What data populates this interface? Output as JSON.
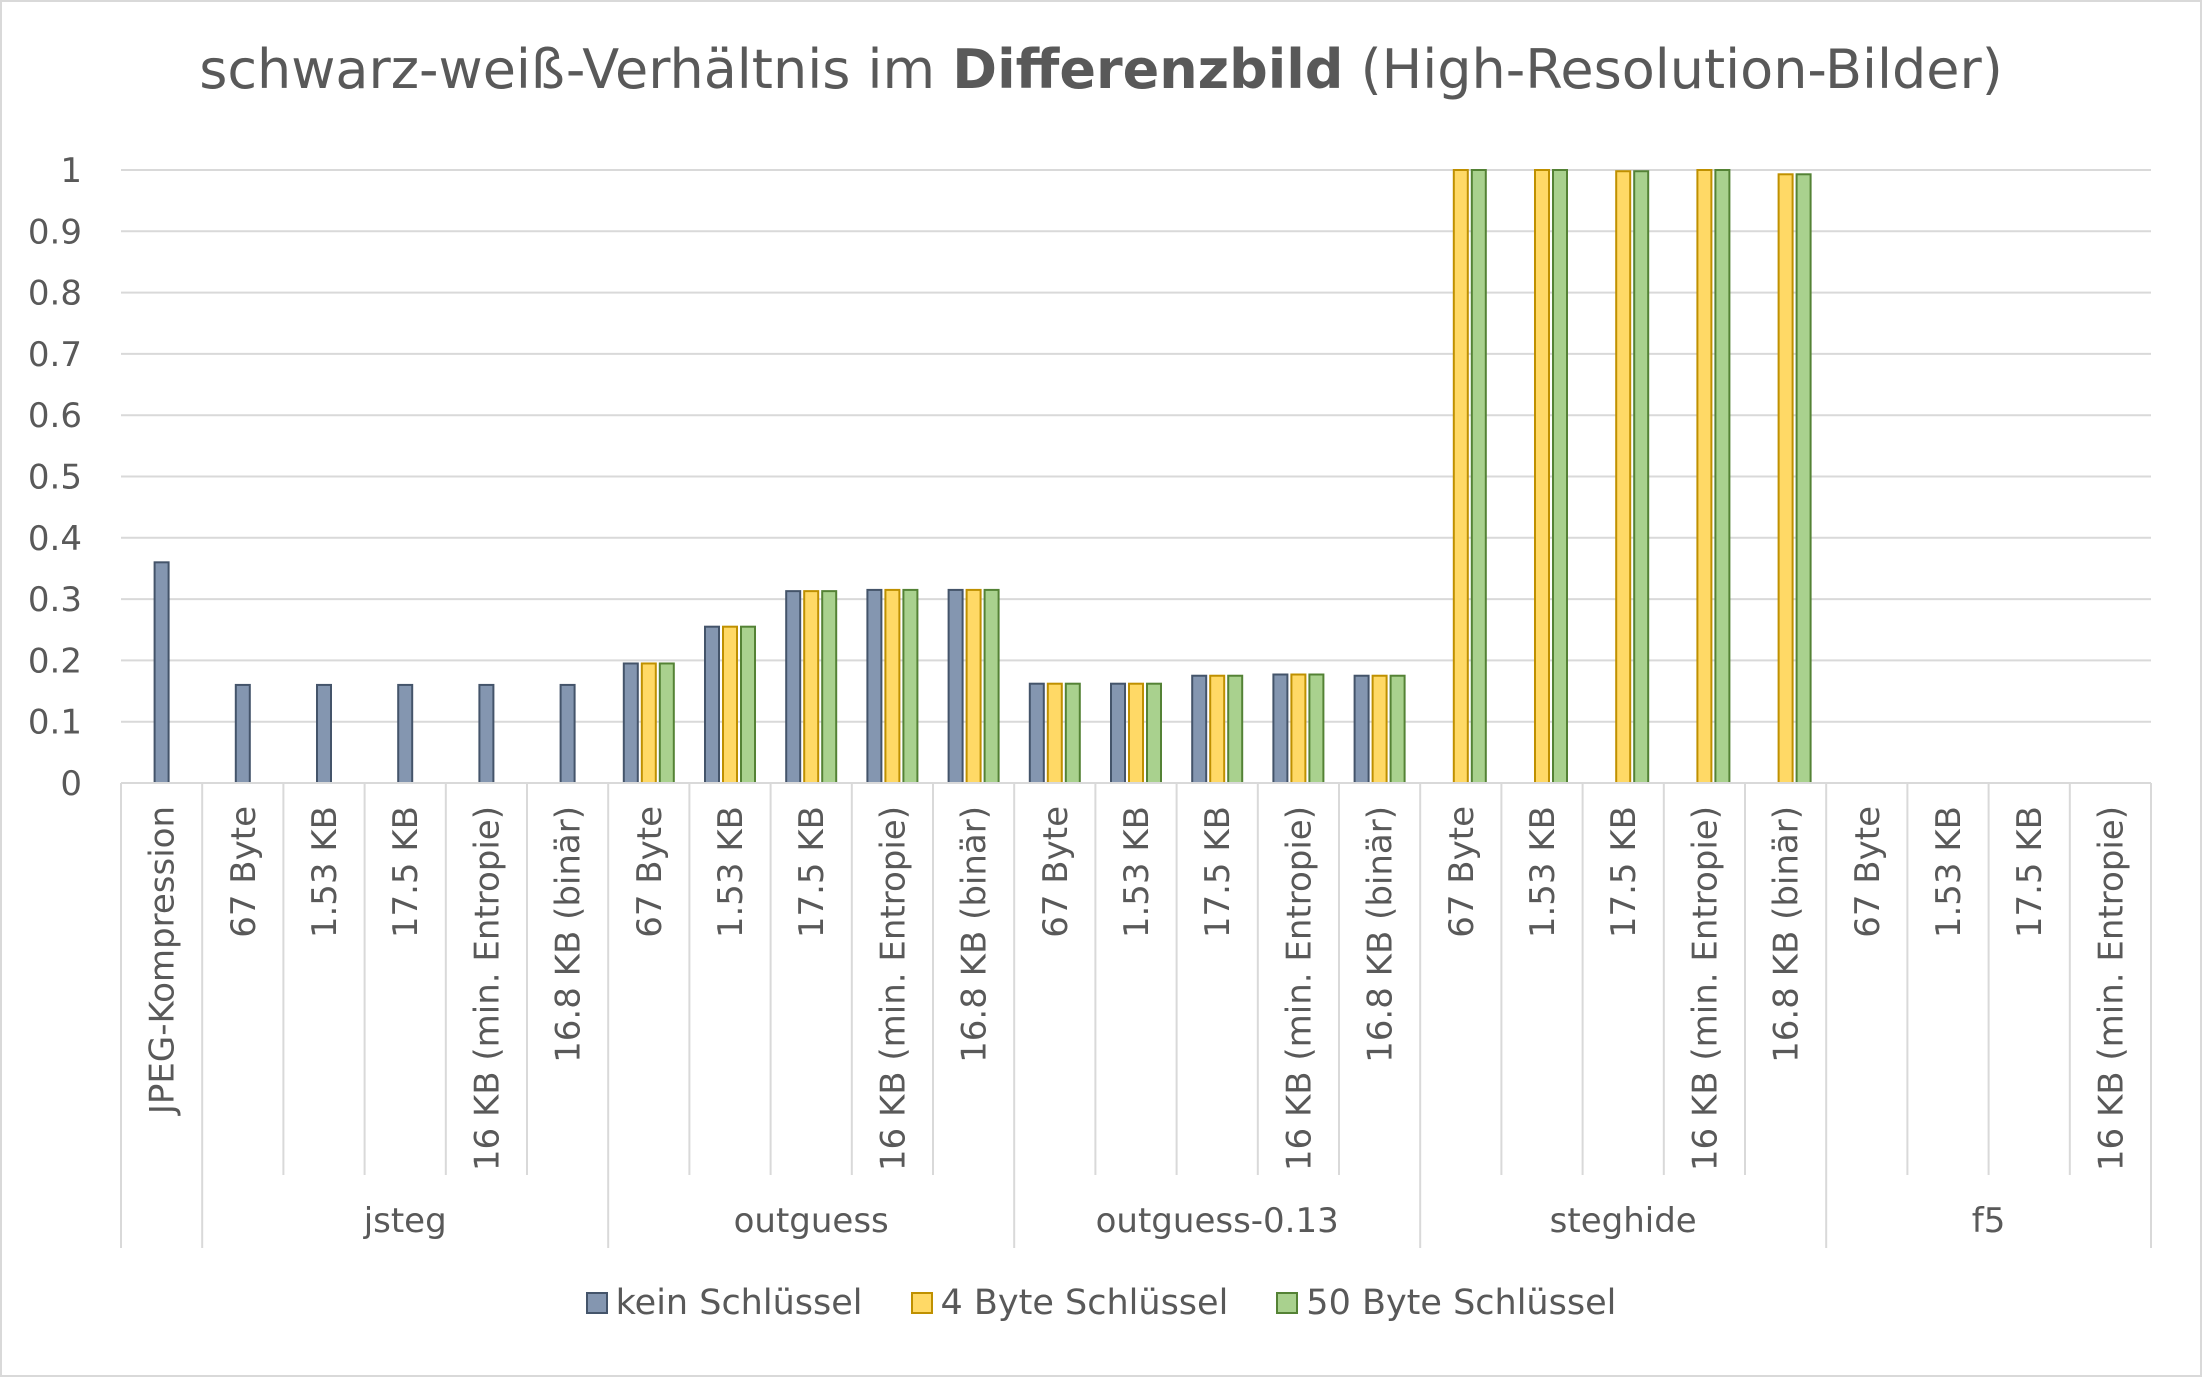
{
  "chart_data": {
    "type": "bar",
    "title_prefix": "schwarz-weiß-Verhältnis im ",
    "title_bold": "Differenzbild",
    "title_suffix": " (High-Resolution-Bilder)",
    "ylim": [
      0,
      1
    ],
    "yticks": [
      "0",
      "0.1",
      "0.2",
      "0.3",
      "0.4",
      "0.5",
      "0.6",
      "0.7",
      "0.8",
      "0.9",
      "1"
    ],
    "grid": true,
    "legend_position": "bottom",
    "groups": [
      {
        "name": "",
        "categories": [
          "JPEG-Kompression"
        ]
      },
      {
        "name": "jsteg",
        "categories": [
          "67 Byte",
          "1.53 KB",
          "17.5 KB",
          "16 KB (min. Entropie)",
          "16.8 KB (binär)"
        ]
      },
      {
        "name": "outguess",
        "categories": [
          "67 Byte",
          "1.53 KB",
          "17.5 KB",
          "16 KB (min. Entropie)",
          "16.8 KB (binär)"
        ]
      },
      {
        "name": "outguess-0.13",
        "categories": [
          "67 Byte",
          "1.53 KB",
          "17.5 KB",
          "16 KB (min. Entropie)",
          "16.8 KB (binär)"
        ]
      },
      {
        "name": "steghide",
        "categories": [
          "67 Byte",
          "1.53 KB",
          "17.5 KB",
          "16 KB (min. Entropie)",
          "16.8 KB (binär)"
        ]
      },
      {
        "name": "f5",
        "categories": [
          "67 Byte",
          "1.53 KB",
          "17.5 KB",
          "16 KB (min. Entropie)"
        ]
      }
    ],
    "series": [
      {
        "name": "kein Schlüssel",
        "color": "#8496b0",
        "stroke": "#44546a",
        "values": [
          0.36,
          0.16,
          0.16,
          0.16,
          0.16,
          0.16,
          0.195,
          0.255,
          0.313,
          0.315,
          0.315,
          0.162,
          0.162,
          0.175,
          0.177,
          0.175,
          null,
          null,
          null,
          null,
          null,
          null,
          null,
          null,
          null
        ]
      },
      {
        "name": "4 Byte Schlüssel",
        "color": "#ffd966",
        "stroke": "#bf9000",
        "values": [
          null,
          null,
          null,
          null,
          null,
          null,
          0.195,
          0.255,
          0.313,
          0.315,
          0.315,
          0.162,
          0.162,
          0.175,
          0.177,
          0.175,
          1.0,
          1.0,
          0.998,
          1.0,
          0.993,
          null,
          null,
          null,
          null
        ]
      },
      {
        "name": "50 Byte Schlüssel",
        "color": "#a9d18e",
        "stroke": "#548235",
        "values": [
          null,
          null,
          null,
          null,
          null,
          null,
          0.195,
          0.255,
          0.313,
          0.315,
          0.315,
          0.162,
          0.162,
          0.175,
          0.177,
          0.175,
          1.0,
          1.0,
          0.998,
          1.0,
          0.993,
          null,
          null,
          null,
          null
        ]
      }
    ]
  }
}
